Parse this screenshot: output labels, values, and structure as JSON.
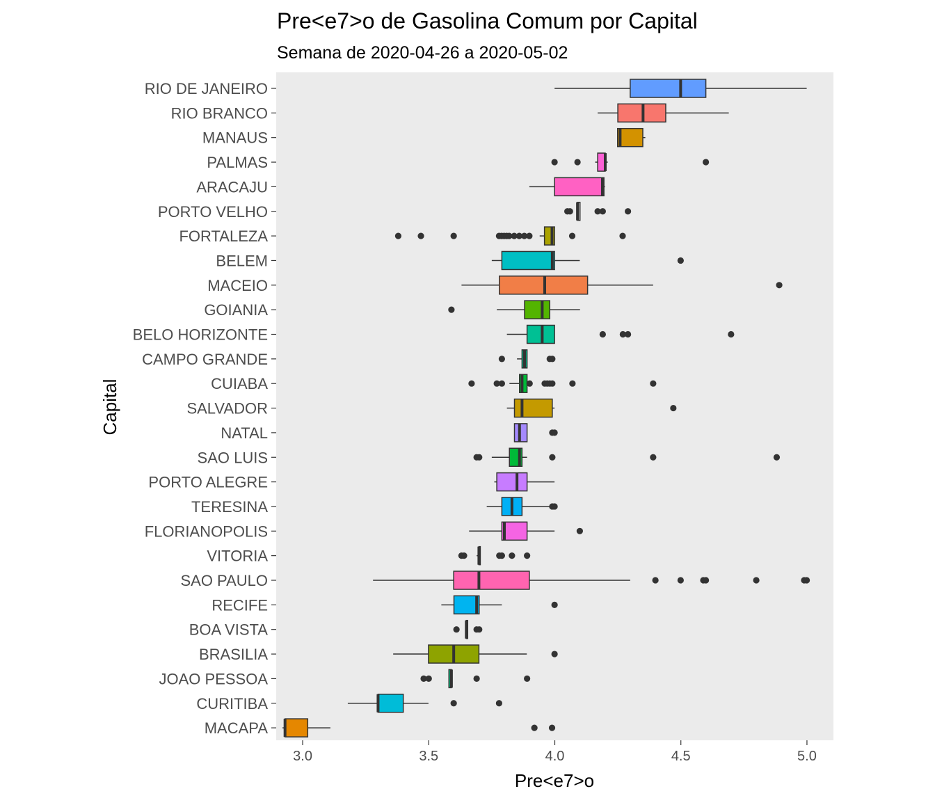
{
  "chart_data": {
    "type": "boxplot",
    "title": "Pre<e7>o de Gasolina Comum por Capital",
    "subtitle": "Semana de 2020-04-26 a 2020-05-02",
    "xlabel": "Pre<e7>o",
    "ylabel": "Capital",
    "xlim": [
      2.895,
      5.105
    ],
    "xticks": [
      3.0,
      3.5,
      4.0,
      4.5,
      5.0
    ],
    "xtick_labels": [
      "3.0",
      "3.5",
      "4.0",
      "4.5",
      "5.0"
    ],
    "grid": false,
    "panel_background": "#ebebeb",
    "legend": "none",
    "categories": [
      "RIO DE JANEIRO",
      "RIO BRANCO",
      "MANAUS",
      "PALMAS",
      "ARACAJU",
      "PORTO VELHO",
      "FORTALEZA",
      "BELEM",
      "MACEIO",
      "GOIANIA",
      "BELO HORIZONTE",
      "CAMPO GRANDE",
      "CUIABA",
      "SALVADOR",
      "NATAL",
      "SAO LUIS",
      "PORTO ALEGRE",
      "TERESINA",
      "FLORIANOPOLIS",
      "VITORIA",
      "SAO PAULO",
      "RECIFE",
      "BOA VISTA",
      "BRASILIA",
      "JOAO PESSOA",
      "CURITIBA",
      "MACAPA"
    ],
    "boxes": [
      {
        "capital": "RIO DE JANEIRO",
        "color": "#619cff",
        "min": 3.999,
        "q1": 4.299,
        "median": 4.499,
        "q3": 4.599,
        "max": 4.999,
        "outliers": []
      },
      {
        "capital": "RIO BRANCO",
        "color": "#f8766d",
        "min": 4.17,
        "q1": 4.25,
        "median": 4.35,
        "q3": 4.44,
        "max": 4.69,
        "outliers": []
      },
      {
        "capital": "MANAUS",
        "color": "#d39200",
        "min": 4.249,
        "q1": 4.249,
        "median": 4.259,
        "q3": 4.349,
        "max": 4.359,
        "outliers": []
      },
      {
        "capital": "PALMAS",
        "color": "#fc61d5",
        "min": 4.16,
        "q1": 4.17,
        "median": 4.2,
        "q3": 4.2,
        "max": 4.21,
        "outliers": [
          3.999,
          4.09,
          4.599
        ]
      },
      {
        "capital": "ARACAJU",
        "color": "#ff61c3",
        "min": 3.899,
        "q1": 3.999,
        "median": 4.189,
        "q3": 4.195,
        "max": 4.199,
        "outliers": []
      },
      {
        "capital": "PORTO VELHO",
        "color": "#d3d3d3",
        "min": 4.09,
        "q1": 4.09,
        "median": 4.09,
        "q3": 4.1,
        "max": 4.1,
        "outliers": [
          4.05,
          4.06,
          4.17,
          4.19,
          4.29
        ]
      },
      {
        "capital": "FORTALEZA",
        "color": "#aba300",
        "min": 3.94,
        "q1": 3.959,
        "median": 3.989,
        "q3": 3.999,
        "max": 3.999,
        "outliers": [
          3.379,
          3.469,
          3.599,
          3.779,
          3.789,
          3.799,
          3.809,
          3.819,
          3.839,
          3.859,
          3.879,
          3.899,
          4.069,
          4.269
        ]
      },
      {
        "capital": "BELEM",
        "color": "#00bfc4",
        "min": 3.75,
        "q1": 3.79,
        "median": 3.99,
        "q3": 3.999,
        "max": 4.099,
        "outliers": [
          4.499
        ]
      },
      {
        "capital": "MACEIO",
        "color": "#f17e47",
        "min": 3.63,
        "q1": 3.78,
        "median": 3.96,
        "q3": 4.13,
        "max": 4.39,
        "outliers": [
          4.89
        ]
      },
      {
        "capital": "GOIANIA",
        "color": "#53b400",
        "min": 3.77,
        "q1": 3.88,
        "median": 3.95,
        "q3": 3.98,
        "max": 4.1,
        "outliers": [
          3.59
        ]
      },
      {
        "capital": "BELO HORIZONTE",
        "color": "#00c094",
        "min": 3.81,
        "q1": 3.89,
        "median": 3.95,
        "q3": 3.999,
        "max": 3.999,
        "outliers": [
          4.19,
          4.27,
          4.29,
          4.699
        ]
      },
      {
        "capital": "CAMPO GRANDE",
        "color": "#00c08b",
        "min": 3.85,
        "q1": 3.87,
        "median": 3.88,
        "q3": 3.89,
        "max": 3.89,
        "outliers": [
          3.79,
          3.98,
          3.99
        ]
      },
      {
        "capital": "CUIABA",
        "color": "#00b938",
        "min": 3.82,
        "q1": 3.86,
        "median": 3.87,
        "q3": 3.89,
        "max": 3.89,
        "outliers": [
          3.67,
          3.77,
          3.79,
          3.9,
          3.96,
          3.97,
          3.98,
          3.99,
          4.07,
          4.39
        ]
      },
      {
        "capital": "SALVADOR",
        "color": "#c49a00",
        "min": 3.81,
        "q1": 3.84,
        "median": 3.87,
        "q3": 3.99,
        "max": 3.999,
        "outliers": [
          4.47
        ]
      },
      {
        "capital": "NATAL",
        "color": "#a58aff",
        "min": 3.84,
        "q1": 3.84,
        "median": 3.86,
        "q3": 3.89,
        "max": 3.89,
        "outliers": [
          3.99,
          3.999
        ]
      },
      {
        "capital": "SAO LUIS",
        "color": "#00ba38",
        "min": 3.75,
        "q1": 3.82,
        "median": 3.86,
        "q3": 3.87,
        "max": 3.89,
        "outliers": [
          3.69,
          3.7,
          3.99,
          4.39,
          4.88
        ]
      },
      {
        "capital": "PORTO ALEGRE",
        "color": "#c77cff",
        "min": 3.76,
        "q1": 3.77,
        "median": 3.85,
        "q3": 3.89,
        "max": 3.999,
        "outliers": []
      },
      {
        "capital": "TERESINA",
        "color": "#00b0f6",
        "min": 3.73,
        "q1": 3.79,
        "median": 3.83,
        "q3": 3.87,
        "max": 3.99,
        "outliers": [
          3.99,
          3.999
        ]
      },
      {
        "capital": "FLORIANOPOLIS",
        "color": "#f564e3",
        "min": 3.66,
        "q1": 3.79,
        "median": 3.8,
        "q3": 3.89,
        "max": 3.999,
        "outliers": [
          4.099
        ]
      },
      {
        "capital": "VITORIA",
        "color": "#b79f00",
        "min": 3.69,
        "q1": 3.699,
        "median": 3.699,
        "q3": 3.7,
        "max": 3.7,
        "outliers": [
          3.63,
          3.64,
          3.78,
          3.79,
          3.83,
          3.89
        ]
      },
      {
        "capital": "SAO PAULO",
        "color": "#ff64b0",
        "min": 3.279,
        "q1": 3.599,
        "median": 3.699,
        "q3": 3.899,
        "max": 4.299,
        "outliers": [
          4.399,
          4.499,
          4.589,
          4.599,
          4.799,
          4.989,
          4.999
        ]
      },
      {
        "capital": "RECIFE",
        "color": "#00b4f0",
        "min": 3.55,
        "q1": 3.6,
        "median": 3.69,
        "q3": 3.7,
        "max": 3.79,
        "outliers": [
          3.999
        ]
      },
      {
        "capital": "BOA VISTA",
        "color": "#7cae00",
        "min": 3.649,
        "q1": 3.649,
        "median": 3.649,
        "q3": 3.65,
        "max": 3.65,
        "outliers": [
          3.61,
          3.69,
          3.7
        ]
      },
      {
        "capital": "BRASILIA",
        "color": "#8ea300",
        "min": 3.359,
        "q1": 3.499,
        "median": 3.599,
        "q3": 3.699,
        "max": 3.889,
        "outliers": [
          3.999
        ]
      },
      {
        "capital": "JOAO PESSOA",
        "color": "#00bf7d",
        "min": 3.58,
        "q1": 3.58,
        "median": 3.59,
        "q3": 3.59,
        "max": 3.59,
        "outliers": [
          3.48,
          3.5,
          3.69,
          3.89
        ]
      },
      {
        "capital": "CURITIBA",
        "color": "#00bcd8",
        "min": 3.179,
        "q1": 3.299,
        "median": 3.299,
        "q3": 3.399,
        "max": 3.499,
        "outliers": [
          3.599,
          3.779
        ]
      },
      {
        "capital": "MACAPA",
        "color": "#e58700",
        "min": 2.92,
        "q1": 2.93,
        "median": 2.93,
        "q3": 3.02,
        "max": 3.11,
        "outliers": [
          3.919,
          3.989
        ]
      }
    ]
  }
}
